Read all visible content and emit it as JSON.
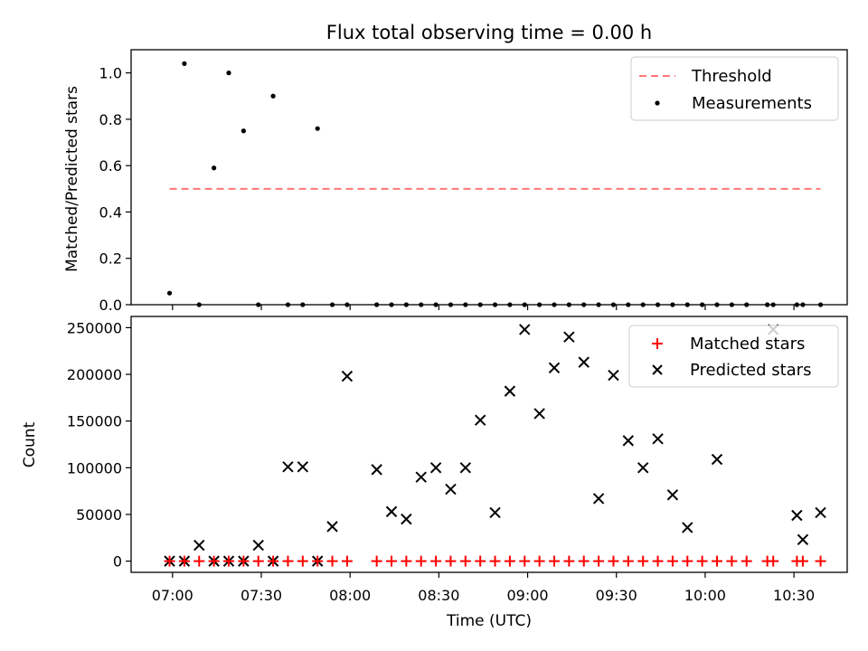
{
  "chart_data": [
    {
      "type": "scatter",
      "title": "Flux total observing time = 0.00 h",
      "xlabel": "",
      "ylabel": "Matched/Predicted stars",
      "x_unit": "time (UTC)",
      "xlim": [
        "06:46",
        "10:48"
      ],
      "ylim": [
        0,
        1.1
      ],
      "y_ticks": [
        "0.0",
        "0.2",
        "0.4",
        "0.6",
        "0.8",
        "1.0"
      ],
      "legend_position": "top-right",
      "threshold": {
        "name": "Threshold",
        "value": 0.5,
        "x_start": "06:59",
        "x_end": "10:39",
        "color": "#ff7777",
        "style": "dashed"
      },
      "series": [
        {
          "name": "Measurements",
          "color": "#000000",
          "marker": "dot",
          "points": [
            [
              "06:59",
              0.05
            ],
            [
              "07:04",
              1.04
            ],
            [
              "07:09",
              0.0
            ],
            [
              "07:14",
              0.59
            ],
            [
              "07:19",
              1.0
            ],
            [
              "07:24",
              0.75
            ],
            [
              "07:29",
              0.0
            ],
            [
              "07:34",
              0.9
            ],
            [
              "07:39",
              0.0
            ],
            [
              "07:44",
              0.0
            ],
            [
              "07:49",
              0.76
            ],
            [
              "07:54",
              0.0
            ],
            [
              "07:59",
              0.0
            ],
            [
              "08:09",
              0.0
            ],
            [
              "08:14",
              0.0
            ],
            [
              "08:19",
              0.0
            ],
            [
              "08:24",
              0.0
            ],
            [
              "08:29",
              0.0
            ],
            [
              "08:34",
              0.0
            ],
            [
              "08:39",
              0.0
            ],
            [
              "08:44",
              0.0
            ],
            [
              "08:49",
              0.0
            ],
            [
              "08:54",
              0.0
            ],
            [
              "08:59",
              0.0
            ],
            [
              "09:04",
              0.0
            ],
            [
              "09:09",
              0.0
            ],
            [
              "09:14",
              0.0
            ],
            [
              "09:19",
              0.0
            ],
            [
              "09:24",
              0.0
            ],
            [
              "09:29",
              0.0
            ],
            [
              "09:34",
              0.0
            ],
            [
              "09:39",
              0.0
            ],
            [
              "09:44",
              0.0
            ],
            [
              "09:49",
              0.0
            ],
            [
              "09:54",
              0.0
            ],
            [
              "09:59",
              0.0
            ],
            [
              "10:04",
              0.0
            ],
            [
              "10:09",
              0.0
            ],
            [
              "10:14",
              0.0
            ],
            [
              "10:21",
              0.0
            ],
            [
              "10:23",
              0.0
            ],
            [
              "10:31",
              0.0
            ],
            [
              "10:33",
              0.0
            ],
            [
              "10:39",
              0.0
            ]
          ]
        }
      ]
    },
    {
      "type": "scatter",
      "title": "",
      "xlabel": "Time (UTC)",
      "ylabel": "Count",
      "x_unit": "time (UTC)",
      "xlim": [
        "06:46",
        "10:48"
      ],
      "ylim": [
        -12000,
        262000
      ],
      "x_ticks": [
        "07:00",
        "07:30",
        "08:00",
        "08:30",
        "09:00",
        "09:30",
        "10:00",
        "10:30"
      ],
      "y_ticks": [
        "0",
        "50000",
        "100000",
        "150000",
        "200000",
        "250000"
      ],
      "legend_position": "top-right",
      "series": [
        {
          "name": "Matched stars",
          "color": "#ff0000",
          "marker": "plus",
          "points": [
            [
              "06:59",
              0
            ],
            [
              "07:04",
              0
            ],
            [
              "07:09",
              0
            ],
            [
              "07:14",
              0
            ],
            [
              "07:19",
              0
            ],
            [
              "07:24",
              0
            ],
            [
              "07:29",
              0
            ],
            [
              "07:34",
              0
            ],
            [
              "07:39",
              0
            ],
            [
              "07:44",
              0
            ],
            [
              "07:49",
              0
            ],
            [
              "07:54",
              0
            ],
            [
              "07:59",
              0
            ],
            [
              "08:09",
              0
            ],
            [
              "08:14",
              0
            ],
            [
              "08:19",
              0
            ],
            [
              "08:24",
              0
            ],
            [
              "08:29",
              0
            ],
            [
              "08:34",
              0
            ],
            [
              "08:39",
              0
            ],
            [
              "08:44",
              0
            ],
            [
              "08:49",
              0
            ],
            [
              "08:54",
              0
            ],
            [
              "08:59",
              0
            ],
            [
              "09:04",
              0
            ],
            [
              "09:09",
              0
            ],
            [
              "09:14",
              0
            ],
            [
              "09:19",
              0
            ],
            [
              "09:24",
              0
            ],
            [
              "09:29",
              0
            ],
            [
              "09:34",
              0
            ],
            [
              "09:39",
              0
            ],
            [
              "09:44",
              0
            ],
            [
              "09:49",
              0
            ],
            [
              "09:54",
              0
            ],
            [
              "09:59",
              0
            ],
            [
              "10:04",
              0
            ],
            [
              "10:09",
              0
            ],
            [
              "10:14",
              0
            ],
            [
              "10:21",
              0
            ],
            [
              "10:23",
              0
            ],
            [
              "10:31",
              0
            ],
            [
              "10:33",
              0
            ],
            [
              "10:39",
              0
            ]
          ]
        },
        {
          "name": "Predicted stars",
          "color": "#000000",
          "marker": "x",
          "points": [
            [
              "06:59",
              0
            ],
            [
              "07:04",
              0
            ],
            [
              "07:09",
              17000
            ],
            [
              "07:14",
              0
            ],
            [
              "07:19",
              0
            ],
            [
              "07:24",
              0
            ],
            [
              "07:29",
              17000
            ],
            [
              "07:34",
              0
            ],
            [
              "07:39",
              101000
            ],
            [
              "07:44",
              101000
            ],
            [
              "07:49",
              0
            ],
            [
              "07:54",
              37000
            ],
            [
              "07:59",
              198000
            ],
            [
              "08:09",
              98000
            ],
            [
              "08:14",
              53000
            ],
            [
              "08:19",
              45000
            ],
            [
              "08:24",
              90000
            ],
            [
              "08:29",
              100000
            ],
            [
              "08:34",
              77000
            ],
            [
              "08:39",
              100000
            ],
            [
              "08:44",
              151000
            ],
            [
              "08:49",
              52000
            ],
            [
              "08:54",
              182000
            ],
            [
              "08:59",
              248000
            ],
            [
              "09:04",
              158000
            ],
            [
              "09:09",
              207000
            ],
            [
              "09:14",
              240000
            ],
            [
              "09:19",
              213000
            ],
            [
              "09:24",
              67000
            ],
            [
              "09:29",
              199000
            ],
            [
              "09:34",
              129000
            ],
            [
              "09:39",
              100000
            ],
            [
              "09:44",
              131000
            ],
            [
              "09:49",
              71000
            ],
            [
              "09:54",
              36000
            ],
            [
              "10:04",
              109000
            ],
            [
              "10:23",
              248000
            ],
            [
              "10:31",
              49000
            ],
            [
              "10:33",
              23000
            ],
            [
              "10:39",
              52000
            ]
          ]
        }
      ]
    }
  ]
}
